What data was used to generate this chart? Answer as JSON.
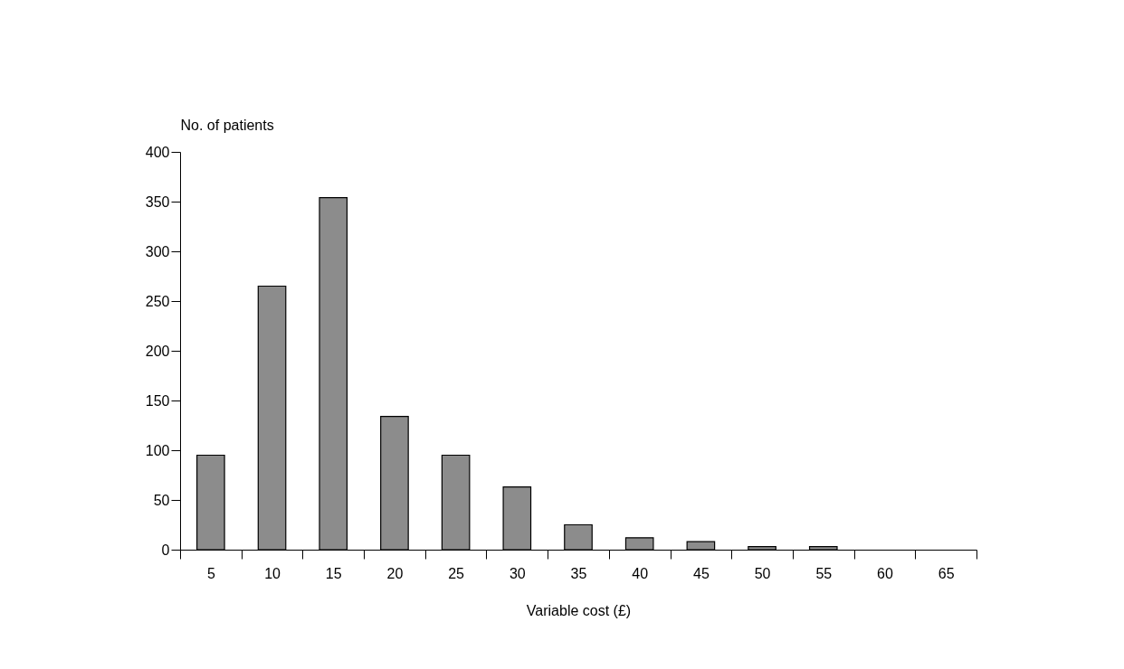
{
  "chart_data": {
    "type": "bar",
    "xlabel": "Variable cost (£)",
    "ylabel": "No. of patients",
    "categories": [
      "5",
      "10",
      "15",
      "20",
      "25",
      "30",
      "35",
      "40",
      "45",
      "50",
      "55",
      "60",
      "65"
    ],
    "values": [
      95,
      265,
      354,
      134,
      95,
      63,
      25,
      12,
      8,
      3,
      3,
      0,
      0
    ],
    "color": "#8c8c8c",
    "ylim": [
      0,
      400
    ],
    "yticks": [
      0,
      50,
      100,
      150,
      200,
      250,
      300,
      350,
      400
    ],
    "grid": false,
    "legend": false
  }
}
